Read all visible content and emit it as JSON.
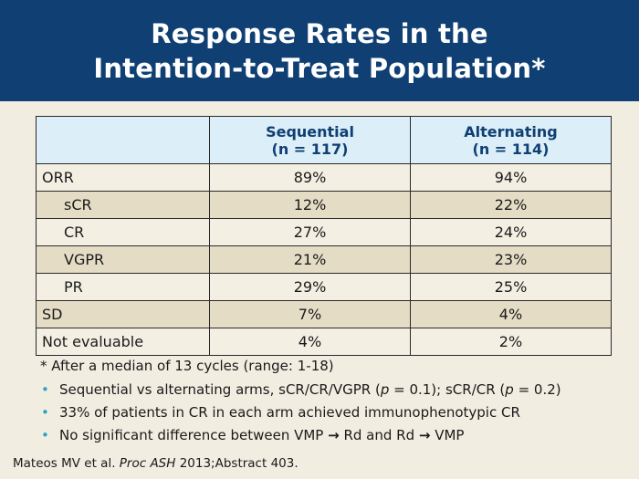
{
  "title": {
    "line1": "Response Rates in the",
    "line2": "Intention-to-Treat Population*"
  },
  "table": {
    "corner": "",
    "columns": [
      {
        "name": "Sequential",
        "n": "(n = 117)"
      },
      {
        "name": "Alternating",
        "n": "(n = 114)"
      }
    ],
    "rows": [
      {
        "label": "ORR",
        "sub": false,
        "shade": false,
        "values": [
          "89%",
          "94%"
        ]
      },
      {
        "label": "sCR",
        "sub": true,
        "shade": true,
        "values": [
          "12%",
          "22%"
        ]
      },
      {
        "label": "CR",
        "sub": true,
        "shade": false,
        "values": [
          "27%",
          "24%"
        ]
      },
      {
        "label": "VGPR",
        "sub": true,
        "shade": true,
        "values": [
          "21%",
          "23%"
        ]
      },
      {
        "label": "PR",
        "sub": true,
        "shade": false,
        "values": [
          "29%",
          "25%"
        ]
      },
      {
        "label": "SD",
        "sub": false,
        "shade": true,
        "values": [
          "7%",
          "4%"
        ]
      },
      {
        "label": "Not evaluable",
        "sub": false,
        "shade": false,
        "values": [
          "4%",
          "2%"
        ]
      }
    ]
  },
  "footnote": "* After a median of 13 cycles (range: 1-18)",
  "bullets": {
    "b1": {
      "pre": "Sequential vs alternating arms, sCR/CR/VGPR (",
      "p1": "p",
      "mid": " = 0.1); sCR/CR (",
      "p2": "p",
      "post": " = 0.2)"
    },
    "b2": "33% of patients in CR in each arm achieved immunophenotypic CR",
    "b3": {
      "pre": "No significant difference between VMP ",
      "arrow1": "→",
      "mid": " Rd and Rd ",
      "arrow2": "→",
      "post": " VMP"
    }
  },
  "citation": {
    "authors": "Mateos MV et al. ",
    "journal": "Proc ASH",
    "rest": " 2013;Abstract 403."
  },
  "colors": {
    "header": "#0f3f73",
    "background": "#f2ede1",
    "table_head": "#dceef8",
    "row_shade": "#e5dcc6",
    "bullet": "#2aa3c6"
  }
}
